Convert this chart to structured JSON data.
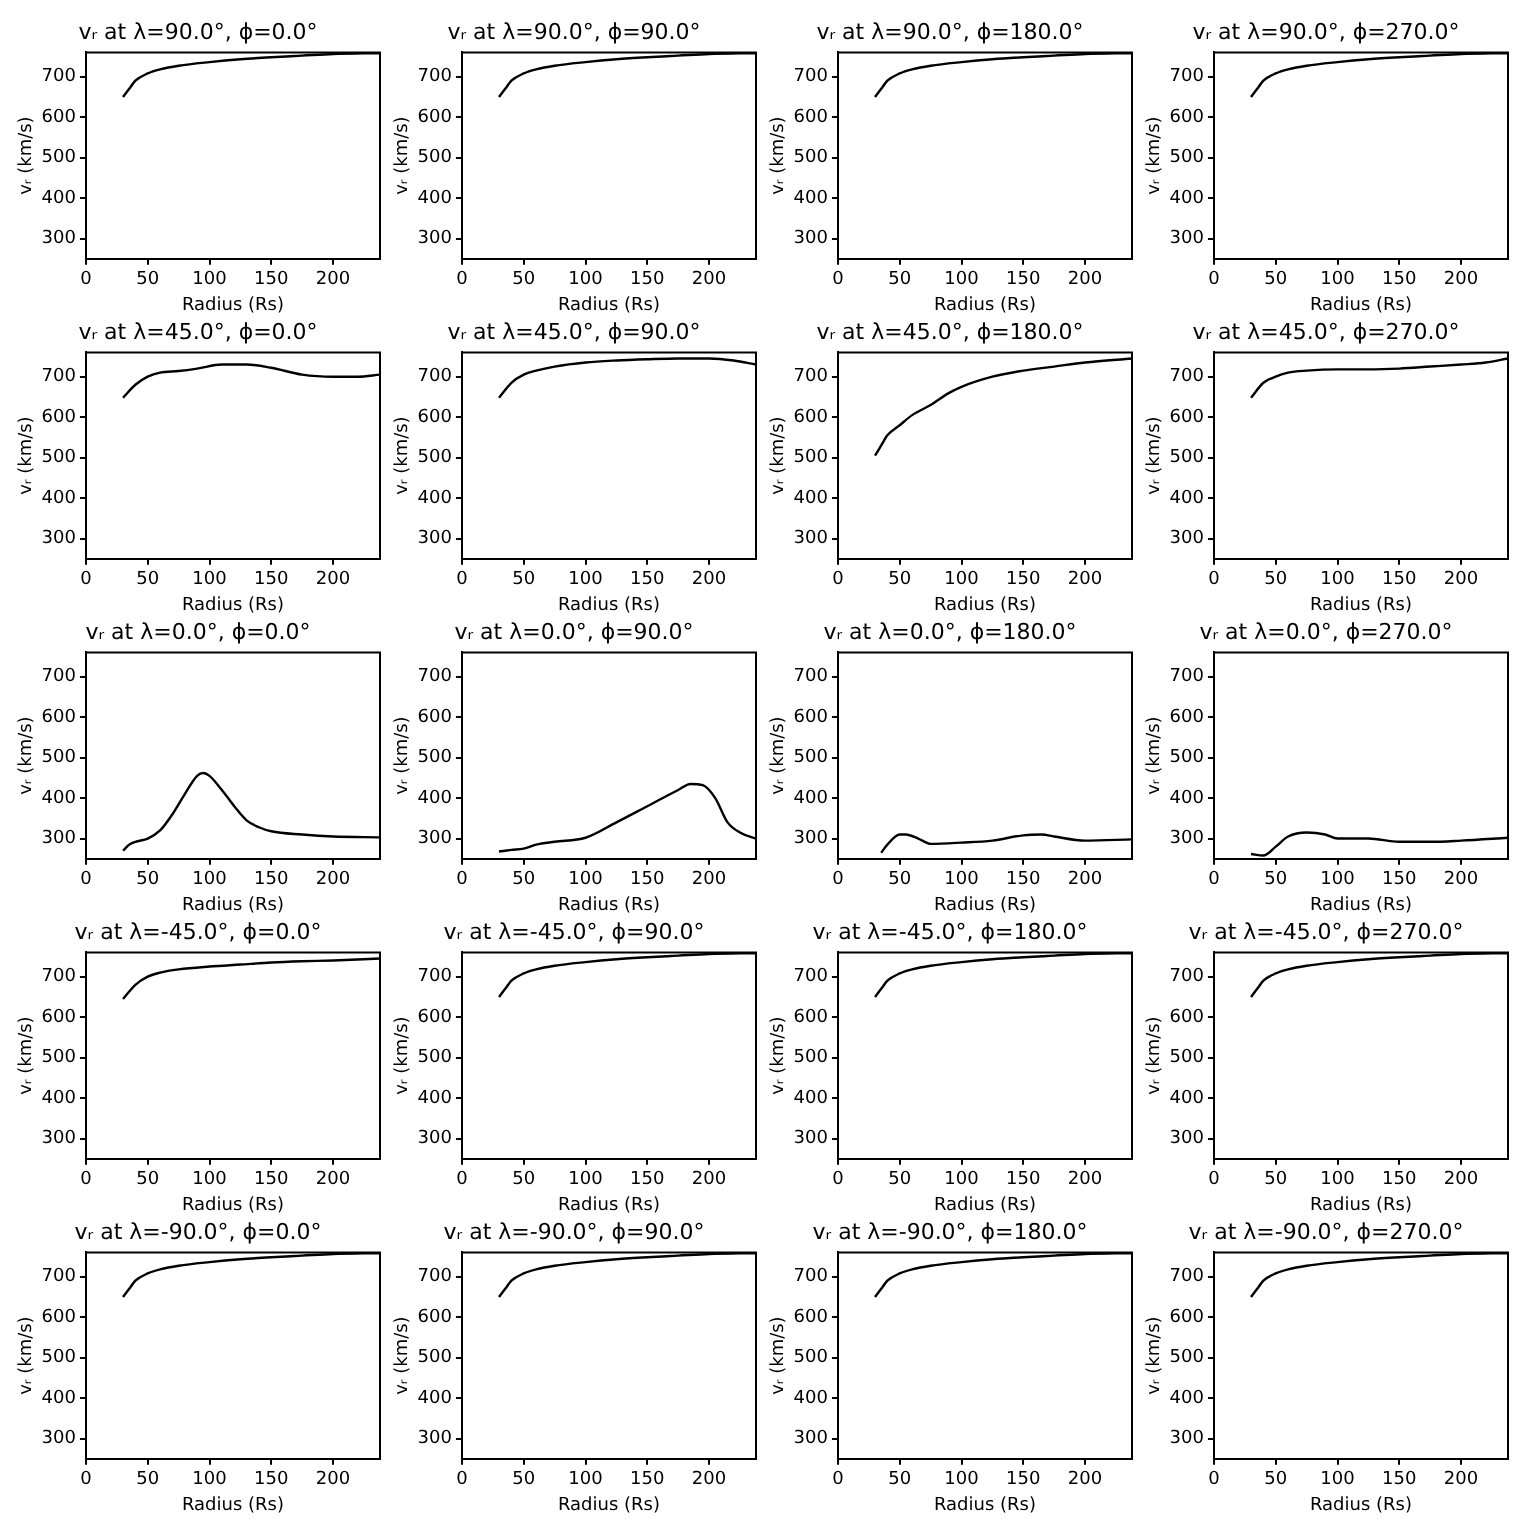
{
  "chart_data": [
    {
      "type": "line",
      "title": "vᵣ at λ=90.0°, ϕ=0.0°",
      "xlabel": "Radius (Rs)",
      "ylabel": "vᵣ (km/s)",
      "x": [
        30,
        35,
        40,
        50,
        60,
        75,
        100,
        125,
        150,
        175,
        200,
        238
      ],
      "values": [
        650,
        670,
        690,
        708,
        718,
        727,
        736,
        743,
        748,
        752,
        756,
        758
      ],
      "color": "#000000",
      "xlim": [
        0,
        238
      ],
      "ylim": [
        250,
        760
      ],
      "xticks": [
        0,
        50,
        100,
        150,
        200
      ],
      "yticks": [
        300,
        400,
        500,
        600,
        700
      ],
      "grid": false,
      "legend": false,
      "marker": "none",
      "line_style": "solid"
    },
    {
      "type": "line",
      "title": "vᵣ at λ=90.0°, ϕ=90.0°",
      "xlabel": "Radius (Rs)",
      "ylabel": "vᵣ (km/s)",
      "x": [
        30,
        35,
        40,
        50,
        60,
        75,
        100,
        125,
        150,
        175,
        200,
        238
      ],
      "values": [
        650,
        670,
        690,
        708,
        718,
        727,
        736,
        743,
        748,
        752,
        756,
        758
      ],
      "color": "#000000",
      "xlim": [
        0,
        238
      ],
      "ylim": [
        250,
        760
      ],
      "xticks": [
        0,
        50,
        100,
        150,
        200
      ],
      "yticks": [
        300,
        400,
        500,
        600,
        700
      ],
      "grid": false,
      "legend": false,
      "marker": "none",
      "line_style": "solid"
    },
    {
      "type": "line",
      "title": "vᵣ at λ=90.0°, ϕ=180.0°",
      "xlabel": "Radius (Rs)",
      "ylabel": "vᵣ (km/s)",
      "x": [
        30,
        35,
        40,
        50,
        60,
        75,
        100,
        125,
        150,
        175,
        200,
        238
      ],
      "values": [
        650,
        670,
        690,
        708,
        718,
        727,
        736,
        743,
        748,
        752,
        756,
        758
      ],
      "color": "#000000",
      "xlim": [
        0,
        238
      ],
      "ylim": [
        250,
        760
      ],
      "xticks": [
        0,
        50,
        100,
        150,
        200
      ],
      "yticks": [
        300,
        400,
        500,
        600,
        700
      ],
      "grid": false,
      "legend": false,
      "marker": "none",
      "line_style": "solid"
    },
    {
      "type": "line",
      "title": "vᵣ at λ=90.0°, ϕ=270.0°",
      "xlabel": "Radius (Rs)",
      "ylabel": "vᵣ (km/s)",
      "x": [
        30,
        35,
        40,
        50,
        60,
        75,
        100,
        125,
        150,
        175,
        200,
        238
      ],
      "values": [
        650,
        670,
        690,
        708,
        718,
        727,
        736,
        743,
        748,
        752,
        756,
        758
      ],
      "color": "#000000",
      "xlim": [
        0,
        238
      ],
      "ylim": [
        250,
        760
      ],
      "xticks": [
        0,
        50,
        100,
        150,
        200
      ],
      "yticks": [
        300,
        400,
        500,
        600,
        700
      ],
      "grid": false,
      "legend": false,
      "marker": "none",
      "line_style": "solid"
    },
    {
      "type": "line",
      "title": "vᵣ at λ=45.0°, ϕ=0.0°",
      "xlabel": "Radius (Rs)",
      "ylabel": "vᵣ (km/s)",
      "x": [
        30,
        40,
        50,
        60,
        75,
        90,
        110,
        130,
        150,
        175,
        200,
        220,
        238
      ],
      "values": [
        648,
        680,
        700,
        710,
        714,
        720,
        730,
        730,
        722,
        705,
        700,
        700,
        705
      ],
      "color": "#000000",
      "xlim": [
        0,
        238
      ],
      "ylim": [
        250,
        760
      ],
      "xticks": [
        0,
        50,
        100,
        150,
        200
      ],
      "yticks": [
        300,
        400,
        500,
        600,
        700
      ],
      "grid": false,
      "legend": false,
      "marker": "none",
      "line_style": "solid"
    },
    {
      "type": "line",
      "title": "vᵣ at λ=45.0°, ϕ=90.0°",
      "xlabel": "Radius (Rs)",
      "ylabel": "vᵣ (km/s)",
      "x": [
        30,
        40,
        50,
        60,
        75,
        100,
        125,
        150,
        175,
        200,
        220,
        238
      ],
      "values": [
        648,
        685,
        705,
        715,
        725,
        735,
        740,
        743,
        745,
        745,
        740,
        730
      ],
      "color": "#000000",
      "xlim": [
        0,
        238
      ],
      "ylim": [
        250,
        760
      ],
      "xticks": [
        0,
        50,
        100,
        150,
        200
      ],
      "yticks": [
        300,
        400,
        500,
        600,
        700
      ],
      "grid": false,
      "legend": false,
      "marker": "none",
      "line_style": "solid"
    },
    {
      "type": "line",
      "title": "vᵣ at λ=45.0°, ϕ=180.0°",
      "xlabel": "Radius (Rs)",
      "ylabel": "vᵣ (km/s)",
      "x": [
        30,
        35,
        40,
        50,
        60,
        75,
        90,
        100,
        125,
        150,
        175,
        200,
        238
      ],
      "values": [
        505,
        530,
        555,
        580,
        605,
        630,
        660,
        675,
        700,
        715,
        725,
        735,
        745
      ],
      "color": "#000000",
      "xlim": [
        0,
        238
      ],
      "ylim": [
        250,
        760
      ],
      "xticks": [
        0,
        50,
        100,
        150,
        200
      ],
      "yticks": [
        300,
        400,
        500,
        600,
        700
      ],
      "grid": false,
      "legend": false,
      "marker": "none",
      "line_style": "solid"
    },
    {
      "type": "line",
      "title": "vᵣ at λ=45.0°, ϕ=270.0°",
      "xlabel": "Radius (Rs)",
      "ylabel": "vᵣ (km/s)",
      "x": [
        30,
        40,
        50,
        60,
        75,
        100,
        125,
        150,
        175,
        200,
        220,
        238
      ],
      "values": [
        648,
        685,
        700,
        710,
        715,
        718,
        718,
        720,
        725,
        730,
        735,
        745
      ],
      "color": "#000000",
      "xlim": [
        0,
        238
      ],
      "ylim": [
        250,
        760
      ],
      "xticks": [
        0,
        50,
        100,
        150,
        200
      ],
      "yticks": [
        300,
        400,
        500,
        600,
        700
      ],
      "grid": false,
      "legend": false,
      "marker": "none",
      "line_style": "solid"
    },
    {
      "type": "line",
      "title": "vᵣ at λ=0.0°, ϕ=0.0°",
      "xlabel": "Radius (Rs)",
      "ylabel": "vᵣ (km/s)",
      "x": [
        30,
        35,
        40,
        50,
        60,
        70,
        80,
        90,
        95,
        100,
        110,
        120,
        130,
        140,
        150,
        175,
        200,
        238
      ],
      "values": [
        270,
        285,
        292,
        300,
        320,
        360,
        410,
        455,
        462,
        455,
        420,
        380,
        345,
        328,
        318,
        310,
        305,
        303
      ],
      "color": "#000000",
      "xlim": [
        0,
        238
      ],
      "ylim": [
        250,
        760
      ],
      "xticks": [
        0,
        50,
        100,
        150,
        200
      ],
      "yticks": [
        300,
        400,
        500,
        600,
        700
      ],
      "grid": false,
      "legend": false,
      "marker": "none",
      "line_style": "solid"
    },
    {
      "type": "line",
      "title": "vᵣ at λ=0.0°, ϕ=90.0°",
      "xlabel": "Radius (Rs)",
      "ylabel": "vᵣ (km/s)",
      "x": [
        30,
        40,
        50,
        60,
        75,
        100,
        125,
        150,
        175,
        185,
        195,
        205,
        215,
        225,
        238
      ],
      "values": [
        268,
        272,
        275,
        285,
        292,
        302,
        340,
        380,
        420,
        435,
        432,
        400,
        340,
        315,
        300
      ],
      "color": "#000000",
      "xlim": [
        0,
        238
      ],
      "ylim": [
        250,
        760
      ],
      "xticks": [
        0,
        50,
        100,
        150,
        200
      ],
      "yticks": [
        300,
        400,
        500,
        600,
        700
      ],
      "grid": false,
      "legend": false,
      "marker": "none",
      "line_style": "solid"
    },
    {
      "type": "line",
      "title": "vᵣ at λ=0.0°, ϕ=180.0°",
      "xlabel": "Radius (Rs)",
      "ylabel": "vᵣ (km/s)",
      "x": [
        35,
        40,
        50,
        55,
        65,
        75,
        100,
        125,
        150,
        165,
        175,
        200,
        238
      ],
      "values": [
        265,
        285,
        310,
        310,
        300,
        287,
        290,
        295,
        308,
        310,
        305,
        295,
        298
      ],
      "color": "#000000",
      "xlim": [
        0,
        238
      ],
      "ylim": [
        250,
        760
      ],
      "xticks": [
        0,
        50,
        100,
        150,
        200
      ],
      "yticks": [
        300,
        400,
        500,
        600,
        700
      ],
      "grid": false,
      "legend": false,
      "marker": "none",
      "line_style": "solid"
    },
    {
      "type": "line",
      "title": "vᵣ at λ=0.0°, ϕ=270.0°",
      "xlabel": "Radius (Rs)",
      "ylabel": "vᵣ (km/s)",
      "x": [
        30,
        40,
        50,
        60,
        75,
        90,
        100,
        125,
        150,
        175,
        200,
        238
      ],
      "values": [
        262,
        258,
        280,
        305,
        315,
        310,
        300,
        300,
        292,
        292,
        295,
        302
      ],
      "color": "#000000",
      "xlim": [
        0,
        238
      ],
      "ylim": [
        250,
        760
      ],
      "xticks": [
        0,
        50,
        100,
        150,
        200
      ],
      "yticks": [
        300,
        400,
        500,
        600,
        700
      ],
      "grid": false,
      "legend": false,
      "marker": "none",
      "line_style": "solid"
    },
    {
      "type": "line",
      "title": "vᵣ at λ=-45.0°, ϕ=0.0°",
      "xlabel": "Radius (Rs)",
      "ylabel": "vᵣ (km/s)",
      "x": [
        30,
        40,
        50,
        60,
        75,
        100,
        125,
        150,
        175,
        200,
        238
      ],
      "values": [
        645,
        680,
        700,
        710,
        718,
        725,
        730,
        735,
        738,
        740,
        745
      ],
      "color": "#000000",
      "xlim": [
        0,
        238
      ],
      "ylim": [
        250,
        760
      ],
      "xticks": [
        0,
        50,
        100,
        150,
        200
      ],
      "yticks": [
        300,
        400,
        500,
        600,
        700
      ],
      "grid": false,
      "legend": false,
      "marker": "none",
      "line_style": "solid"
    },
    {
      "type": "line",
      "title": "vᵣ at λ=-45.0°, ϕ=90.0°",
      "xlabel": "Radius (Rs)",
      "ylabel": "vᵣ (km/s)",
      "x": [
        30,
        35,
        40,
        50,
        60,
        75,
        100,
        125,
        150,
        175,
        200,
        238
      ],
      "values": [
        650,
        670,
        690,
        708,
        718,
        727,
        736,
        743,
        748,
        752,
        756,
        758
      ],
      "color": "#000000",
      "xlim": [
        0,
        238
      ],
      "ylim": [
        250,
        760
      ],
      "xticks": [
        0,
        50,
        100,
        150,
        200
      ],
      "yticks": [
        300,
        400,
        500,
        600,
        700
      ],
      "grid": false,
      "legend": false,
      "marker": "none",
      "line_style": "solid"
    },
    {
      "type": "line",
      "title": "vᵣ at λ=-45.0°, ϕ=180.0°",
      "xlabel": "Radius (Rs)",
      "ylabel": "vᵣ (km/s)",
      "x": [
        30,
        35,
        40,
        50,
        60,
        75,
        100,
        125,
        150,
        175,
        200,
        238
      ],
      "values": [
        650,
        670,
        690,
        708,
        718,
        727,
        736,
        743,
        748,
        752,
        756,
        758
      ],
      "color": "#000000",
      "xlim": [
        0,
        238
      ],
      "ylim": [
        250,
        760
      ],
      "xticks": [
        0,
        50,
        100,
        150,
        200
      ],
      "yticks": [
        300,
        400,
        500,
        600,
        700
      ],
      "grid": false,
      "legend": false,
      "marker": "none",
      "line_style": "solid"
    },
    {
      "type": "line",
      "title": "vᵣ at λ=-45.0°, ϕ=270.0°",
      "xlabel": "Radius (Rs)",
      "ylabel": "vᵣ (km/s)",
      "x": [
        30,
        35,
        40,
        50,
        60,
        75,
        100,
        125,
        150,
        175,
        200,
        238
      ],
      "values": [
        650,
        670,
        690,
        708,
        718,
        727,
        736,
        743,
        748,
        752,
        756,
        758
      ],
      "color": "#000000",
      "xlim": [
        0,
        238
      ],
      "ylim": [
        250,
        760
      ],
      "xticks": [
        0,
        50,
        100,
        150,
        200
      ],
      "yticks": [
        300,
        400,
        500,
        600,
        700
      ],
      "grid": false,
      "legend": false,
      "marker": "none",
      "line_style": "solid"
    },
    {
      "type": "line",
      "title": "vᵣ at λ=-90.0°, ϕ=0.0°",
      "xlabel": "Radius (Rs)",
      "ylabel": "vᵣ (km/s)",
      "x": [
        30,
        35,
        40,
        50,
        60,
        75,
        100,
        125,
        150,
        175,
        200,
        238
      ],
      "values": [
        650,
        670,
        690,
        708,
        718,
        727,
        736,
        743,
        748,
        752,
        756,
        758
      ],
      "color": "#000000",
      "xlim": [
        0,
        238
      ],
      "ylim": [
        250,
        760
      ],
      "xticks": [
        0,
        50,
        100,
        150,
        200
      ],
      "yticks": [
        300,
        400,
        500,
        600,
        700
      ],
      "grid": false,
      "legend": false,
      "marker": "none",
      "line_style": "solid"
    },
    {
      "type": "line",
      "title": "vᵣ at λ=-90.0°, ϕ=90.0°",
      "xlabel": "Radius (Rs)",
      "ylabel": "vᵣ (km/s)",
      "x": [
        30,
        35,
        40,
        50,
        60,
        75,
        100,
        125,
        150,
        175,
        200,
        238
      ],
      "values": [
        650,
        670,
        690,
        708,
        718,
        727,
        736,
        743,
        748,
        752,
        756,
        758
      ],
      "color": "#000000",
      "xlim": [
        0,
        238
      ],
      "ylim": [
        250,
        760
      ],
      "xticks": [
        0,
        50,
        100,
        150,
        200
      ],
      "yticks": [
        300,
        400,
        500,
        600,
        700
      ],
      "grid": false,
      "legend": false,
      "marker": "none",
      "line_style": "solid"
    },
    {
      "type": "line",
      "title": "vᵣ at λ=-90.0°, ϕ=180.0°",
      "xlabel": "Radius (Rs)",
      "ylabel": "vᵣ (km/s)",
      "x": [
        30,
        35,
        40,
        50,
        60,
        75,
        100,
        125,
        150,
        175,
        200,
        238
      ],
      "values": [
        650,
        670,
        690,
        708,
        718,
        727,
        736,
        743,
        748,
        752,
        756,
        758
      ],
      "color": "#000000",
      "xlim": [
        0,
        238
      ],
      "ylim": [
        250,
        760
      ],
      "xticks": [
        0,
        50,
        100,
        150,
        200
      ],
      "yticks": [
        300,
        400,
        500,
        600,
        700
      ],
      "grid": false,
      "legend": false,
      "marker": "none",
      "line_style": "solid"
    },
    {
      "type": "line",
      "title": "vᵣ at λ=-90.0°, ϕ=270.0°",
      "xlabel": "Radius (Rs)",
      "ylabel": "vᵣ (km/s)",
      "x": [
        30,
        35,
        40,
        50,
        60,
        75,
        100,
        125,
        150,
        175,
        200,
        238
      ],
      "values": [
        650,
        670,
        690,
        708,
        718,
        727,
        736,
        743,
        748,
        752,
        756,
        758
      ],
      "color": "#000000",
      "xlim": [
        0,
        238
      ],
      "ylim": [
        250,
        760
      ],
      "xticks": [
        0,
        50,
        100,
        150,
        200
      ],
      "yticks": [
        300,
        400,
        500,
        600,
        700
      ],
      "grid": false,
      "legend": false,
      "marker": "none",
      "line_style": "solid"
    }
  ]
}
